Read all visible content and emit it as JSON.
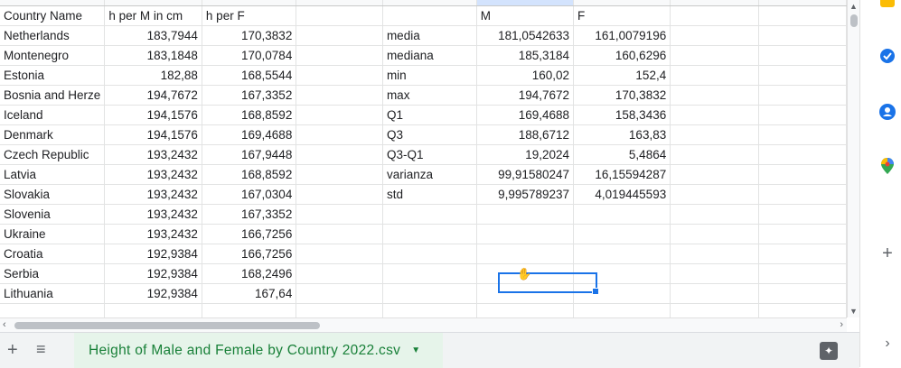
{
  "table": {
    "rows": [
      [
        "Country Name",
        "h per M in cm",
        "h per F",
        "",
        "",
        "M",
        "F",
        "",
        ""
      ],
      [
        "Netherlands",
        "183,7944",
        "170,3832",
        "",
        "media",
        "181,0542633",
        "161,0079196",
        "",
        ""
      ],
      [
        "Montenegro",
        "183,1848",
        "170,0784",
        "",
        "mediana",
        "185,3184",
        "160,6296",
        "",
        ""
      ],
      [
        "Estonia",
        "182,88",
        "168,5544",
        "",
        "min",
        "160,02",
        "152,4",
        "",
        ""
      ],
      [
        "Bosnia and Herze",
        "194,7672",
        "167,3352",
        "",
        "max",
        "194,7672",
        "170,3832",
        "",
        ""
      ],
      [
        "Iceland",
        "194,1576",
        "168,8592",
        "",
        "Q1",
        "169,4688",
        "158,3436",
        "",
        ""
      ],
      [
        "Denmark",
        "194,1576",
        "169,4688",
        "",
        "Q3",
        "188,6712",
        "163,83",
        "",
        ""
      ],
      [
        "Czech Republic",
        "193,2432",
        "167,9448",
        "",
        "Q3-Q1",
        "19,2024",
        "5,4864",
        "",
        ""
      ],
      [
        "Latvia",
        "193,2432",
        "168,8592",
        "",
        "varianza",
        "99,91580247",
        "16,15594287",
        "",
        ""
      ],
      [
        "Slovakia",
        "193,2432",
        "167,0304",
        "",
        "std",
        "9,995789237",
        "4,019445593",
        "",
        ""
      ],
      [
        "Slovenia",
        "193,2432",
        "167,3352",
        "",
        "",
        "",
        "",
        "",
        ""
      ],
      [
        "Ukraine",
        "193,2432",
        "166,7256",
        "",
        "",
        "",
        "",
        "",
        ""
      ],
      [
        "Croatia",
        "192,9384",
        "166,7256",
        "",
        "",
        "",
        "",
        "",
        ""
      ],
      [
        "Serbia",
        "192,9384",
        "168,2496",
        "",
        "",
        "",
        "",
        "",
        ""
      ],
      [
        "Lithuania",
        "192,9384",
        "167,64",
        "",
        "",
        "",
        "",
        "",
        ""
      ],
      [
        "",
        "",
        "",
        "",
        "",
        "",
        "",
        "",
        ""
      ]
    ]
  },
  "sheet_tab": {
    "label": "Height of Male and Female by Country 2022.csv"
  },
  "icons": {
    "add_sheet": "plus-icon",
    "all_sheets": "menu-icon",
    "explore": "explore-icon",
    "side_panel": [
      "keep-icon",
      "tasks-icon",
      "contacts-icon",
      "maps-icon",
      "plus-icon",
      "chevron-right-icon"
    ]
  },
  "colors": {
    "accent": "#1a73e8",
    "tab_text": "#188038",
    "tab_bg": "#e6f4ea"
  }
}
